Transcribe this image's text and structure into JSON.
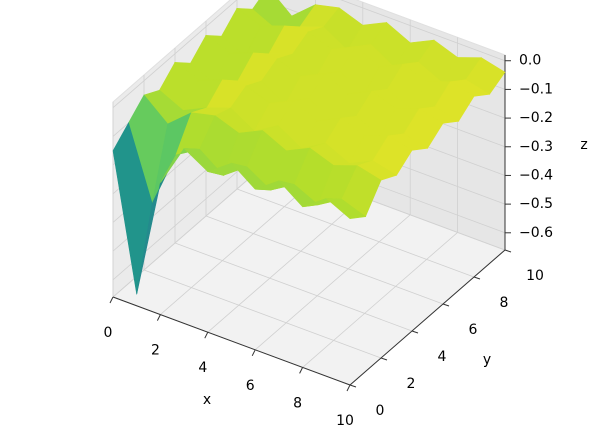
{
  "chart_data": {
    "type": "surface",
    "x_label": "x",
    "y_label": "y",
    "z_label": "z",
    "x": [
      0,
      1,
      2,
      3,
      4,
      5,
      6,
      7,
      8,
      9,
      10
    ],
    "y": [
      0,
      1,
      2,
      3,
      4,
      5,
      6,
      7,
      8,
      9,
      10
    ],
    "z": [
      [
        -0.15,
        -0.62,
        -0.2,
        -0.05,
        -0.1,
        -0.04,
        -0.1,
        -0.04,
        -0.1,
        -0.04,
        -0.08
      ],
      [
        -0.1,
        -0.35,
        -0.15,
        -0.1,
        -0.16,
        -0.1,
        -0.15,
        -0.1,
        -0.14,
        -0.09,
        -0.12
      ],
      [
        -0.05,
        -0.12,
        -0.05,
        -0.03,
        -0.06,
        -0.02,
        -0.06,
        -0.02,
        -0.05,
        -0.02,
        -0.04
      ],
      [
        -0.08,
        -0.12,
        -0.08,
        -0.05,
        -0.1,
        -0.05,
        -0.1,
        -0.05,
        -0.09,
        -0.05,
        -0.07
      ],
      [
        -0.03,
        -0.06,
        -0.03,
        -0.02,
        -0.05,
        -0.01,
        -0.05,
        -0.01,
        -0.04,
        -0.01,
        -0.03
      ],
      [
        -0.08,
        -0.12,
        -0.08,
        -0.05,
        -0.1,
        -0.05,
        -0.1,
        -0.05,
        -0.09,
        -0.05,
        -0.07
      ],
      [
        -0.03,
        -0.06,
        -0.03,
        -0.02,
        -0.05,
        -0.01,
        -0.05,
        -0.01,
        -0.04,
        -0.01,
        -0.03
      ],
      [
        -0.08,
        -0.12,
        -0.08,
        -0.05,
        -0.1,
        -0.05,
        -0.1,
        -0.05,
        -0.09,
        -0.05,
        -0.07
      ],
      [
        -0.03,
        -0.06,
        -0.03,
        -0.02,
        -0.05,
        -0.01,
        -0.05,
        -0.01,
        -0.04,
        -0.01,
        -0.03
      ],
      [
        -0.08,
        -0.12,
        -0.08,
        -0.05,
        -0.1,
        -0.05,
        -0.1,
        -0.05,
        -0.09,
        -0.05,
        -0.07
      ],
      [
        -0.05,
        -0.12,
        -0.05,
        -0.03,
        -0.06,
        -0.02,
        -0.06,
        -0.02,
        -0.05,
        -0.02,
        -0.04
      ]
    ],
    "colormap": "viridis",
    "xlim": [
      0,
      10
    ],
    "ylim": [
      0,
      10
    ],
    "zlim": [
      -0.66,
      0.02
    ],
    "xticks": [
      0,
      2,
      4,
      6,
      8,
      10
    ],
    "yticks": [
      0,
      2,
      4,
      6,
      8,
      10
    ],
    "zticks": [
      {
        "value": 0.0,
        "label": "0.0"
      },
      {
        "value": -0.1,
        "label": "−0.1"
      },
      {
        "value": -0.2,
        "label": "−0.2"
      },
      {
        "value": -0.3,
        "label": "−0.3"
      },
      {
        "value": -0.4,
        "label": "−0.4"
      },
      {
        "value": -0.5,
        "label": "−0.5"
      },
      {
        "value": -0.6,
        "label": "−0.6"
      }
    ],
    "grid": true
  }
}
